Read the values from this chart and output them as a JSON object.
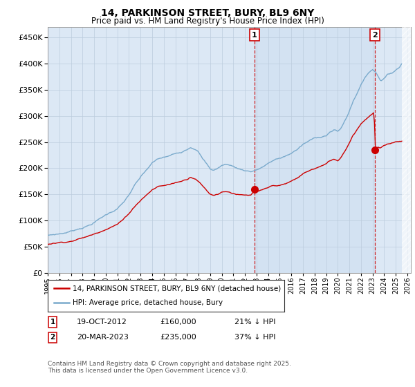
{
  "title": "14, PARKINSON STREET, BURY, BL9 6NY",
  "subtitle": "Price paid vs. HM Land Registry's House Price Index (HPI)",
  "ylim": [
    0,
    470000
  ],
  "yticks": [
    0,
    50000,
    100000,
    150000,
    200000,
    250000,
    300000,
    350000,
    400000,
    450000
  ],
  "legend_label_red": "14, PARKINSON STREET, BURY, BL9 6NY (detached house)",
  "legend_label_blue": "HPI: Average price, detached house, Bury",
  "annotation1_date": "19-OCT-2012",
  "annotation1_price": "£160,000",
  "annotation1_hpi": "21% ↓ HPI",
  "annotation2_date": "20-MAR-2023",
  "annotation2_price": "£235,000",
  "annotation2_hpi": "37% ↓ HPI",
  "footer": "Contains HM Land Registry data © Crown copyright and database right 2025.\nThis data is licensed under the Open Government Licence v3.0.",
  "red_color": "#cc0000",
  "blue_color": "#7aaacc",
  "grid_color": "#bbccdd",
  "background_color": "#ffffff",
  "plot_bg_color": "#dce8f5",
  "annotation_box_color": "#cc0000",
  "sale1_x": 2012.8,
  "sale1_y": 160000,
  "sale2_x": 2023.21,
  "sale2_y": 235000,
  "xmin": 1995.0,
  "xmax": 2026.3,
  "hatch_start": 2025.5
}
